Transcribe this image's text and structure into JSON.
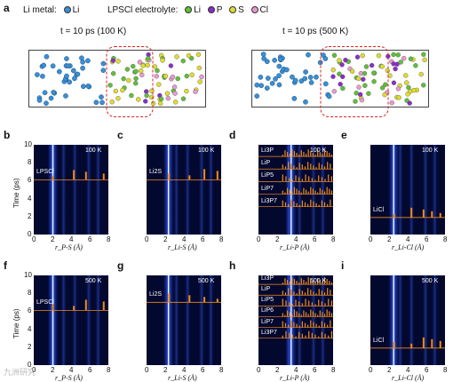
{
  "panel_a": {
    "letter": "a",
    "legend": {
      "li_metal_label": "Li metal:",
      "li_metal_item": "Li",
      "lpscl_label": "LPSCl electrolyte:",
      "items": [
        "Li",
        "P",
        "S",
        "Cl"
      ],
      "colors": {
        "li_metal": "#3a8fd6",
        "li": "#5fbf3a",
        "p": "#8a2ec9",
        "s": "#e0dc2e",
        "cl": "#e89ad0"
      }
    },
    "left_title": "t = 10 ps (100 K)",
    "right_title": "t = 10 ps (500 K)"
  },
  "chart_data": [
    {
      "panel": "b",
      "type": "heatmap",
      "temperature": "100 K",
      "phase": "LPSCl",
      "xlabel": "r_P-S (Å)",
      "ylabel": "Time (ps)",
      "xlim": [
        0,
        8
      ],
      "ylim": [
        0,
        10
      ],
      "xticks": [
        0,
        2,
        4,
        6,
        8
      ],
      "yticks": [
        0,
        2,
        4,
        6,
        8,
        10
      ],
      "ref_time": 6.1,
      "ref_peaks": [
        2.05,
        4.3,
        5.6,
        7.5
      ]
    },
    {
      "panel": "c",
      "type": "heatmap",
      "temperature": "100 K",
      "phase": "Li2S",
      "xlabel": "r_Li-S (Å)",
      "ylabel": "",
      "xlim": [
        0,
        8
      ],
      "ylim": [
        0,
        10
      ],
      "xticks": [
        0,
        2,
        4,
        6,
        8
      ],
      "yticks": [],
      "ref_time": 6.1,
      "ref_peaks": [
        2.4,
        4.6,
        6.2,
        7.6
      ]
    },
    {
      "panel": "d",
      "type": "heatmap",
      "temperature": "100 K",
      "phases": [
        "Li3P",
        "LiP",
        "LiP5",
        "LiP7",
        "Li3P7"
      ],
      "xlabel": "r_Li-P (Å)",
      "ylabel": "",
      "xlim": [
        0,
        8
      ],
      "ylim": [
        0,
        10
      ],
      "xticks": [
        0,
        2,
        4,
        6,
        8
      ],
      "yticks": [],
      "ref_times": [
        8.7,
        7.3,
        5.9,
        4.5,
        3.1
      ]
    },
    {
      "panel": "e",
      "type": "heatmap",
      "temperature": "100 K",
      "phase": "LiCl",
      "xlabel": "r_Li-Cl (Å)",
      "ylabel": "",
      "xlim": [
        0,
        8
      ],
      "ylim": [
        0,
        10
      ],
      "xticks": [
        0,
        2,
        4,
        6,
        8
      ],
      "yticks": [],
      "ref_time": 1.9,
      "ref_peaks": [
        2.55,
        4.4,
        5.7,
        6.6,
        7.5
      ]
    },
    {
      "panel": "f",
      "type": "heatmap",
      "temperature": "500 K",
      "phase": "LPSCl",
      "xlabel": "r_P-S (Å)",
      "ylabel": "Time (ps)",
      "xlim": [
        0,
        8
      ],
      "ylim": [
        0,
        10
      ],
      "xticks": [
        0,
        2,
        4,
        6,
        8
      ],
      "yticks": [
        0,
        2,
        4,
        6,
        8,
        10
      ],
      "ref_time": 6.1,
      "ref_peaks": [
        2.05,
        4.3,
        5.6,
        7.5
      ]
    },
    {
      "panel": "g",
      "type": "heatmap",
      "temperature": "500 K",
      "phase": "Li2S",
      "xlabel": "r_Li-S (Å)",
      "ylabel": "",
      "xlim": [
        0,
        8
      ],
      "ylim": [
        0,
        10
      ],
      "xticks": [
        0,
        2,
        4,
        6,
        8
      ],
      "yticks": [],
      "ref_time": 7.0,
      "ref_peaks": [
        2.4,
        4.6,
        6.2,
        7.6
      ]
    },
    {
      "panel": "h",
      "type": "heatmap",
      "temperature": "500 K",
      "phases": [
        "Li3P",
        "LiP",
        "LiP5",
        "LiP6",
        "LiP7",
        "Li3P7"
      ],
      "xlabel": "r_Li-P (Å)",
      "ylabel": "",
      "xlim": [
        0,
        8
      ],
      "ylim": [
        0,
        10
      ],
      "xticks": [
        0,
        2,
        4,
        6,
        8
      ],
      "yticks": [],
      "ref_times": [
        9.0,
        7.8,
        6.6,
        5.4,
        4.2,
        3.0
      ]
    },
    {
      "panel": "i",
      "type": "heatmap",
      "temperature": "500 K",
      "phase": "LiCl",
      "xlabel": "r_Li-Cl (Å)",
      "ylabel": "",
      "xlim": [
        0,
        8
      ],
      "ylim": [
        0,
        10
      ],
      "xticks": [
        0,
        2,
        4,
        6,
        8
      ],
      "yticks": [],
      "ref_time": 1.9,
      "ref_peaks": [
        2.55,
        4.4,
        5.7,
        6.6,
        7.5
      ]
    }
  ],
  "watermark": "九洲研究"
}
